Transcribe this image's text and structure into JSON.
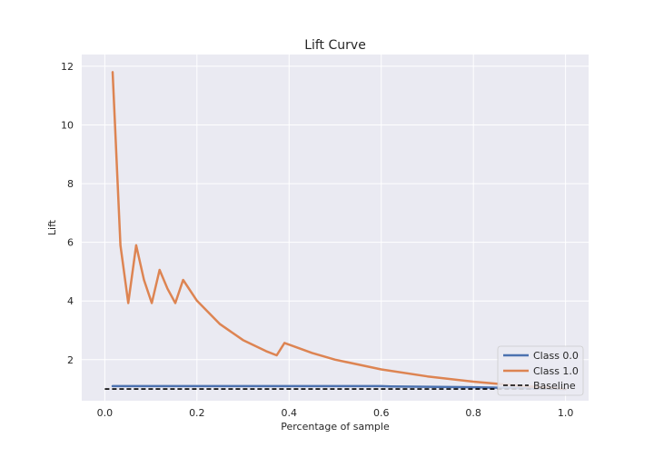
{
  "chart_data": {
    "type": "line",
    "title": "Lift Curve",
    "xlabel": "Percentage of sample",
    "ylabel": "Lift",
    "xlim": [
      -0.05,
      1.05
    ],
    "ylim": [
      0.6,
      12.4
    ],
    "xticks": [
      0.0,
      0.2,
      0.4,
      0.6,
      0.8,
      1.0
    ],
    "xtick_labels": [
      "0.0",
      "0.2",
      "0.4",
      "0.6",
      "0.8",
      "1.0"
    ],
    "yticks": [
      2,
      4,
      6,
      8,
      10,
      12
    ],
    "ytick_labels": [
      "2",
      "4",
      "6",
      "8",
      "10",
      "12"
    ],
    "grid": true,
    "legend_position": "bottom-right",
    "series": [
      {
        "name": "Class 0.0",
        "color": "#4c72b0",
        "x": [
          0.017,
          0.2,
          0.4,
          0.6,
          0.62,
          0.8,
          1.0
        ],
        "y": [
          1.1,
          1.1,
          1.1,
          1.1,
          1.09,
          1.06,
          1.0
        ]
      },
      {
        "name": "Class 1.0",
        "color": "#dd8452",
        "x": [
          0.017,
          0.034,
          0.051,
          0.068,
          0.085,
          0.102,
          0.119,
          0.136,
          0.153,
          0.17,
          0.2,
          0.25,
          0.3,
          0.35,
          0.373,
          0.39,
          0.45,
          0.5,
          0.6,
          0.7,
          0.8,
          0.9,
          1.0
        ],
        "y": [
          11.8,
          5.9,
          3.93,
          5.9,
          4.72,
          3.93,
          5.06,
          4.42,
          3.93,
          4.72,
          4.01,
          3.21,
          2.67,
          2.29,
          2.15,
          2.57,
          2.23,
          2.0,
          1.67,
          1.43,
          1.25,
          1.11,
          1.0
        ]
      },
      {
        "name": "Baseline",
        "color": "#000000",
        "dashed": true,
        "x": [
          0.0,
          1.0
        ],
        "y": [
          1.0,
          1.0
        ]
      }
    ]
  }
}
